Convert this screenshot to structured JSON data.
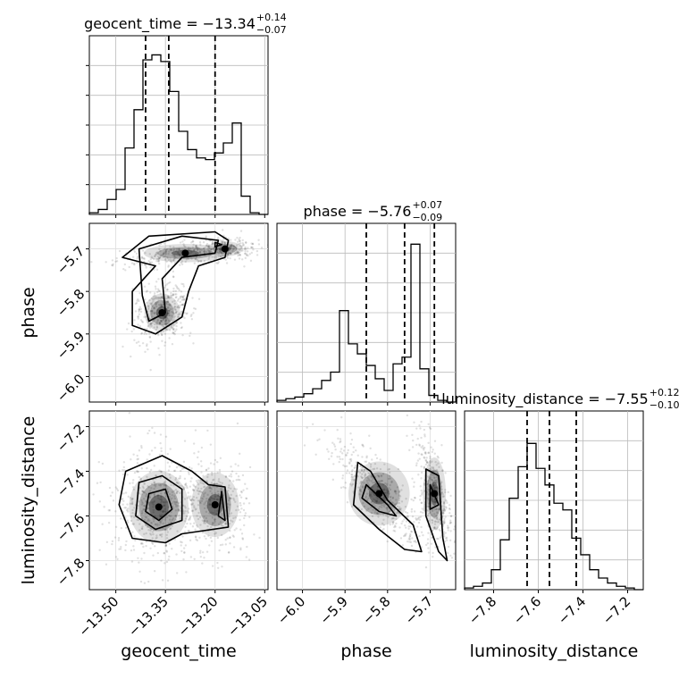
{
  "chart_data": {
    "type": "corner",
    "parameters": [
      "geocent_time",
      "phase",
      "luminosity_distance"
    ],
    "titles": [
      {
        "param": "geocent_time",
        "text": "geocent_time = −13.34",
        "plus": "+0.14",
        "minus": "−0.07"
      },
      {
        "param": "phase",
        "text": "phase = −5.76",
        "plus": "+0.07",
        "minus": "−0.09"
      },
      {
        "param": "luminosity_distance",
        "text": "luminosity_distance = −7.55",
        "plus": "+0.12",
        "minus": "−0.10"
      }
    ],
    "axes": {
      "geocent_time": {
        "range": [
          -13.58,
          -13.04
        ],
        "ticks": [
          -13.5,
          -13.35,
          -13.2,
          -13.05
        ],
        "tick_labels": [
          "−13.50",
          "−13.35",
          "−13.20",
          "−13.05"
        ]
      },
      "phase": {
        "range": [
          -6.06,
          -5.64
        ],
        "ticks": [
          -6.0,
          -5.9,
          -5.8,
          -5.7
        ],
        "tick_labels": [
          "−6.0",
          "−5.9",
          "−5.8",
          "−5.7"
        ]
      },
      "luminosity_distance": {
        "range": [
          -7.93,
          -7.13
        ],
        "ticks": [
          -7.8,
          -7.6,
          -7.4,
          -7.2
        ],
        "tick_labels": [
          "−7.8",
          "−7.6",
          "−7.4",
          "−7.2"
        ]
      }
    },
    "quantiles": {
      "geocent_time": [
        -13.41,
        -13.34,
        -13.2
      ],
      "phase": [
        -5.85,
        -5.76,
        -5.69
      ],
      "luminosity_distance": [
        -7.65,
        -7.55,
        -7.43
      ]
    },
    "histograms": {
      "geocent_time": [
        0.01,
        0.03,
        0.09,
        0.15,
        0.4,
        0.63,
        0.93,
        0.96,
        0.92,
        0.74,
        0.5,
        0.39,
        0.34,
        0.33,
        0.37,
        0.43,
        0.55,
        0.11,
        0.01,
        0.0
      ],
      "phase": [
        0.01,
        0.02,
        0.03,
        0.05,
        0.08,
        0.13,
        0.18,
        0.55,
        0.35,
        0.29,
        0.22,
        0.14,
        0.07,
        0.23,
        0.27,
        0.95,
        0.2,
        0.04,
        0.01,
        0.0
      ],
      "luminosity_distance": [
        0.01,
        0.02,
        0.04,
        0.12,
        0.3,
        0.55,
        0.74,
        0.88,
        0.73,
        0.63,
        0.52,
        0.48,
        0.31,
        0.21,
        0.12,
        0.07,
        0.04,
        0.02,
        0.01,
        0.0
      ]
    },
    "grid": true
  }
}
